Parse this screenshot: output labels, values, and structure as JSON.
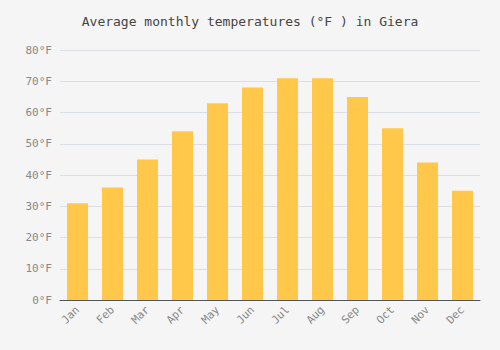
{
  "chart_data": {
    "type": "bar",
    "title": "Average monthly temperatures (°F ) in Giera",
    "categories": [
      "Jan",
      "Feb",
      "Mar",
      "Apr",
      "May",
      "Jun",
      "Jul",
      "Aug",
      "Sep",
      "Oct",
      "Nov",
      "Dec"
    ],
    "values": [
      31,
      36,
      45,
      54,
      63,
      68,
      71,
      71,
      65,
      55,
      44,
      35
    ],
    "color": "#FFC84A",
    "ylim": [
      0,
      80
    ],
    "yticks": [
      {
        "value": 0,
        "label": "0°F"
      },
      {
        "value": 10,
        "label": "10°F"
      },
      {
        "value": 20,
        "label": "20°F"
      },
      {
        "value": 30,
        "label": "30°F"
      },
      {
        "value": 40,
        "label": "40°F"
      },
      {
        "value": 50,
        "label": "50°F"
      },
      {
        "value": 60,
        "label": "60°F"
      },
      {
        "value": 70,
        "label": "70°F"
      },
      {
        "value": 80,
        "label": "80°F"
      }
    ],
    "grid": true
  }
}
